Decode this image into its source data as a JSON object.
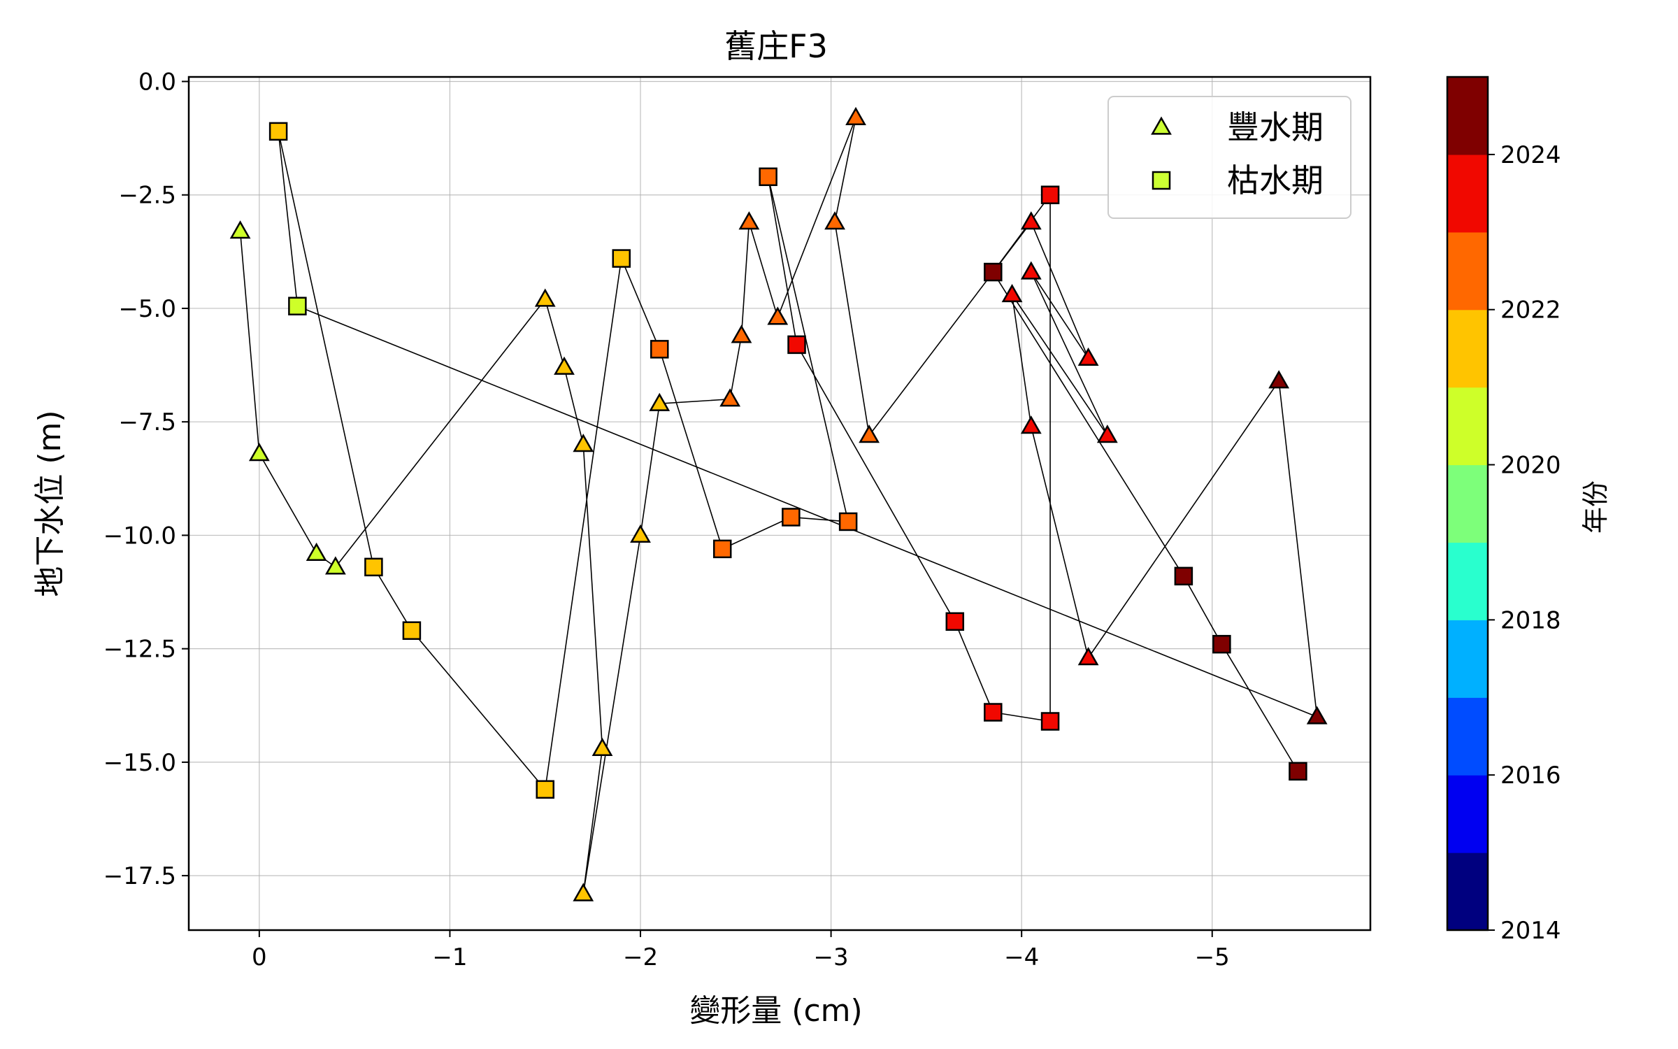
{
  "chart_data": {
    "type": "scatter",
    "title": "舊庄F3",
    "xlabel": "變形量 (cm)",
    "ylabel": "地下水位 (m)",
    "xlim": [
      0.37,
      -5.83
    ],
    "ylim": [
      -18.7,
      0.1
    ],
    "xticks": [
      0,
      -1,
      -2,
      -3,
      -4,
      -5
    ],
    "xtick_labels": [
      "0",
      "−1",
      "−2",
      "−3",
      "−4",
      "−5"
    ],
    "yticks": [
      0,
      -2.5,
      -5,
      -7.5,
      -10,
      -12.5,
      -15,
      -17.5
    ],
    "ytick_labels": [
      "0.0",
      "−2.5",
      "−5.0",
      "−7.5",
      "−10.0",
      "−12.5",
      "−15.0",
      "−17.5"
    ],
    "grid": true,
    "legend_position": "top-right",
    "legend": [
      {
        "label": "豐水期",
        "marker": "triangle",
        "color": "#ccff33"
      },
      {
        "label": "枯水期",
        "marker": "square",
        "color": "#ccff33"
      }
    ],
    "colorbar": {
      "label": "年份",
      "min": 2014,
      "max": 2025,
      "ticks": [
        2014,
        2016,
        2018,
        2020,
        2022,
        2024
      ],
      "bins": [
        "#00007f",
        "#0000f1",
        "#004cff",
        "#00b0ff",
        "#29ffce",
        "#7dff7a",
        "#ceff29",
        "#ffc400",
        "#ff6800",
        "#f10800",
        "#7f0000"
      ]
    },
    "connection_order": [
      "豐水期",
      "枯水期"
    ],
    "series": [
      {
        "name": "豐水期",
        "marker": "triangle",
        "points": [
          {
            "x": 0.1,
            "y": -3.3,
            "year": 2020.5
          },
          {
            "x": 0.0,
            "y": -8.2,
            "year": 2020.5
          },
          {
            "x": -0.3,
            "y": -10.4,
            "year": 2020.5
          },
          {
            "x": -0.4,
            "y": -10.7,
            "year": 2020.5
          },
          {
            "x": -1.5,
            "y": -4.8,
            "year": 2021.5
          },
          {
            "x": -1.6,
            "y": -6.3,
            "year": 2021.5
          },
          {
            "x": -1.7,
            "y": -8.0,
            "year": 2021.5
          },
          {
            "x": -1.8,
            "y": -14.7,
            "year": 2021.5
          },
          {
            "x": -1.7,
            "y": -17.9,
            "year": 2021.5
          },
          {
            "x": -2.0,
            "y": -10.0,
            "year": 2021.5
          },
          {
            "x": -2.1,
            "y": -7.1,
            "year": 2021.5
          },
          {
            "x": -2.47,
            "y": -7.0,
            "year": 2022.5
          },
          {
            "x": -2.53,
            "y": -5.6,
            "year": 2022.5
          },
          {
            "x": -2.57,
            "y": -3.1,
            "year": 2022.5
          },
          {
            "x": -2.72,
            "y": -5.2,
            "year": 2022.5
          },
          {
            "x": -3.13,
            "y": -0.8,
            "year": 2022.5
          },
          {
            "x": -3.02,
            "y": -3.1,
            "year": 2022.5
          },
          {
            "x": -3.2,
            "y": -7.8,
            "year": 2022.5
          },
          {
            "x": -4.05,
            "y": -3.1,
            "year": 2023.5
          },
          {
            "x": -4.35,
            "y": -6.1,
            "year": 2023.5
          },
          {
            "x": -4.05,
            "y": -4.2,
            "year": 2023.5
          },
          {
            "x": -4.45,
            "y": -7.8,
            "year": 2023.5
          },
          {
            "x": -3.95,
            "y": -4.7,
            "year": 2023.5
          },
          {
            "x": -4.05,
            "y": -7.6,
            "year": 2023.5
          },
          {
            "x": -4.35,
            "y": -12.7,
            "year": 2023.5
          },
          {
            "x": -5.35,
            "y": -6.6,
            "year": 2024.5
          },
          {
            "x": -5.55,
            "y": -14.0,
            "year": 2024.5
          }
        ]
      },
      {
        "name": "枯水期",
        "marker": "square",
        "points": [
          {
            "x": -0.2,
            "y": -4.95,
            "year": 2020.5
          },
          {
            "x": -0.1,
            "y": -1.1,
            "year": 2021.5
          },
          {
            "x": -0.6,
            "y": -10.7,
            "year": 2021.5
          },
          {
            "x": -0.8,
            "y": -12.1,
            "year": 2021.5
          },
          {
            "x": -1.5,
            "y": -15.6,
            "year": 2021.5
          },
          {
            "x": -1.9,
            "y": -3.9,
            "year": 2021.5
          },
          {
            "x": -2.1,
            "y": -5.9,
            "year": 2022.5
          },
          {
            "x": -2.43,
            "y": -10.3,
            "year": 2022.5
          },
          {
            "x": -2.79,
            "y": -9.6,
            "year": 2022.5
          },
          {
            "x": -3.09,
            "y": -9.7,
            "year": 2022.5
          },
          {
            "x": -2.67,
            "y": -2.1,
            "year": 2022.5
          },
          {
            "x": -2.82,
            "y": -5.8,
            "year": 2023.5
          },
          {
            "x": -3.65,
            "y": -11.9,
            "year": 2023.5
          },
          {
            "x": -3.85,
            "y": -13.9,
            "year": 2023.5
          },
          {
            "x": -4.15,
            "y": -14.1,
            "year": 2023.5
          },
          {
            "x": -4.15,
            "y": -2.5,
            "year": 2023.5
          },
          {
            "x": -3.85,
            "y": -4.2,
            "year": 2024.5
          },
          {
            "x": -4.85,
            "y": -10.9,
            "year": 2024.5
          },
          {
            "x": -5.05,
            "y": -12.4,
            "year": 2024.5
          },
          {
            "x": -5.45,
            "y": -15.2,
            "year": 2024.5
          }
        ]
      }
    ]
  }
}
